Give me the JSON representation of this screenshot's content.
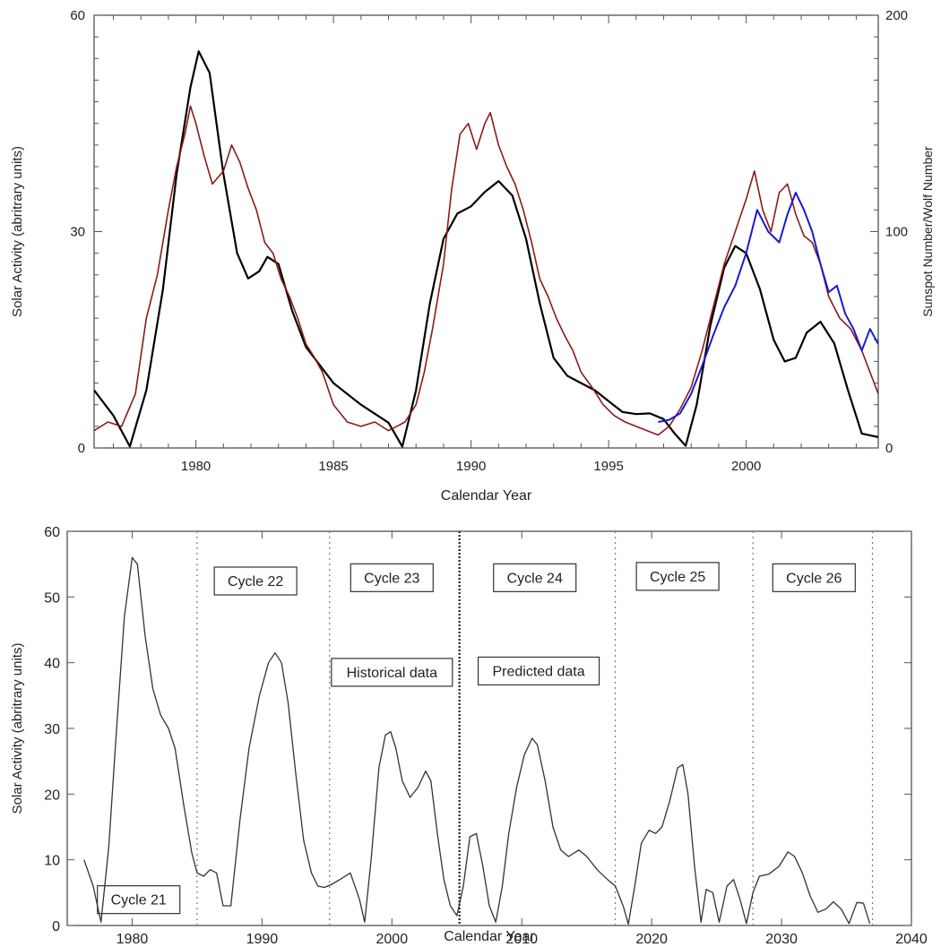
{
  "chart_data": [
    {
      "type": "line",
      "xlabel": "Calendar Year",
      "ylabel": "Solar Activity (abritrary units)",
      "y2label": "Sunspot Number/Wolf  Number",
      "xlim": [
        1976.3,
        2004.8
      ],
      "ylim": [
        0,
        60
      ],
      "y2lim": [
        0,
        200
      ],
      "xticks": [
        1980,
        1985,
        1990,
        1995,
        2000
      ],
      "yticks": [
        0,
        30,
        60
      ],
      "y2ticks": [
        0,
        100,
        200
      ],
      "grid": false,
      "legend": "none",
      "series": [
        {
          "axis": "left",
          "color": "#000000",
          "x": [
            1976.3,
            1977.0,
            1977.6,
            1978.2,
            1978.8,
            1979.3,
            1979.8,
            1980.1,
            1980.5,
            1981.0,
            1981.5,
            1981.9,
            1982.3,
            1982.6,
            1983.0,
            1983.5,
            1984.0,
            1985.0,
            1986.0,
            1987.0,
            1987.5,
            1988.0,
            1988.5,
            1989.0,
            1989.5,
            1990.0,
            1990.5,
            1991.0,
            1991.5,
            1992.0,
            1992.5,
            1993.0,
            1993.5,
            1994.0,
            1994.5,
            1995.0,
            1995.5,
            1996.0,
            1996.5,
            1997.0,
            1997.4,
            1997.8,
            1998.2,
            1998.7,
            1999.2,
            1999.6,
            2000.0,
            2000.5,
            2001.0,
            2001.4,
            2001.8,
            2002.2,
            2002.7,
            2003.2,
            2003.7,
            2004.2,
            2004.8
          ],
          "y": [
            8.0,
            4.5,
            0.2,
            8.0,
            22.0,
            38.0,
            50.0,
            55.0,
            52.0,
            38.0,
            27.0,
            23.5,
            24.5,
            26.5,
            25.5,
            19.0,
            14.0,
            9.0,
            6.0,
            3.5,
            0.2,
            8.0,
            20.0,
            29.0,
            32.5,
            33.5,
            35.5,
            37.0,
            35.0,
            29.0,
            20.0,
            12.5,
            10.0,
            9.0,
            8.0,
            6.5,
            5.0,
            4.7,
            4.8,
            4.0,
            2.0,
            0.3,
            6.0,
            17.0,
            25.0,
            28.0,
            27.0,
            22.0,
            15.0,
            12.0,
            12.5,
            16.0,
            17.5,
            14.5,
            8.0,
            2.0,
            1.5
          ]
        },
        {
          "axis": "right",
          "color": "#8b1a1a",
          "x": [
            1976.3,
            1976.8,
            1977.3,
            1977.8,
            1978.2,
            1978.6,
            1979.0,
            1979.3,
            1979.6,
            1979.8,
            1980.0,
            1980.3,
            1980.6,
            1981.0,
            1981.3,
            1981.6,
            1981.9,
            1982.2,
            1982.5,
            1982.8,
            1983.1,
            1983.4,
            1983.7,
            1984.0,
            1984.3,
            1984.6,
            1985.0,
            1985.5,
            1986.0,
            1986.5,
            1987.0,
            1987.3,
            1987.6,
            1988.0,
            1988.3,
            1988.6,
            1989.0,
            1989.3,
            1989.6,
            1989.9,
            1990.2,
            1990.5,
            1990.7,
            1991.0,
            1991.3,
            1991.6,
            1991.9,
            1992.2,
            1992.5,
            1992.8,
            1993.1,
            1993.4,
            1993.7,
            1994.0,
            1994.4,
            1994.8,
            1995.2,
            1995.6,
            1996.0,
            1996.4,
            1996.8,
            1997.2,
            1997.6,
            1998.0,
            1998.4,
            1998.8,
            1999.2,
            1999.6,
            2000.0,
            2000.3,
            2000.6,
            2000.9,
            2001.2,
            2001.5,
            2001.8,
            2002.1,
            2002.4,
            2002.7,
            2003.0,
            2003.4,
            2003.8,
            2004.2,
            2004.8
          ],
          "y": [
            8,
            12,
            10,
            25,
            60,
            80,
            110,
            130,
            145,
            158,
            150,
            135,
            122,
            128,
            140,
            132,
            120,
            110,
            95,
            90,
            78,
            70,
            60,
            48,
            42,
            35,
            20,
            12,
            10,
            12,
            8,
            10,
            12,
            20,
            35,
            55,
            85,
            120,
            145,
            150,
            138,
            150,
            155,
            140,
            130,
            122,
            110,
            95,
            78,
            70,
            60,
            52,
            45,
            35,
            28,
            20,
            15,
            12,
            10,
            8,
            6,
            10,
            18,
            28,
            45,
            65,
            85,
            100,
            115,
            128,
            110,
            100,
            118,
            122,
            108,
            98,
            95,
            85,
            70,
            60,
            55,
            45,
            25
          ]
        },
        {
          "axis": "right",
          "color": "#1a1acc",
          "x": [
            1996.8,
            1997.2,
            1997.6,
            1998.0,
            1998.4,
            1998.8,
            1999.2,
            1999.6,
            2000.0,
            2000.4,
            2000.8,
            2001.2,
            2001.5,
            2001.8,
            2002.1,
            2002.4,
            2002.7,
            2003.0,
            2003.3,
            2003.6,
            2003.9,
            2004.2,
            2004.5,
            2004.8
          ],
          "y": [
            12,
            13,
            16,
            25,
            38,
            52,
            65,
            75,
            90,
            110,
            100,
            95,
            108,
            118,
            110,
            100,
            85,
            72,
            75,
            62,
            55,
            45,
            55,
            48
          ]
        }
      ]
    },
    {
      "type": "line",
      "xlabel": "Calendar Year",
      "ylabel": "Solar Activity (abritrary units)",
      "xlim": [
        1975,
        2040
      ],
      "ylim": [
        0,
        60
      ],
      "xticks": [
        1980,
        1990,
        2000,
        2010,
        2020,
        2030,
        2040
      ],
      "yticks": [
        0,
        10,
        20,
        30,
        40,
        50,
        60
      ],
      "grid": false,
      "legend": "none",
      "dividers": [
        1985,
        1995.2,
        2005.2,
        2017.2,
        2027.8,
        2037
      ],
      "dividers_heavy": [
        2005.2
      ],
      "annotations": [
        "Cycle 21",
        "Cycle 22",
        "Cycle 23",
        "Cycle 24",
        "Cycle 25",
        "Cycle 26",
        "Historical data",
        "Predicted data"
      ],
      "series": [
        {
          "color": "#333333",
          "x": [
            1976.3,
            1977.0,
            1977.6,
            1978.2,
            1978.8,
            1979.4,
            1980.0,
            1980.4,
            1981.0,
            1981.6,
            1982.2,
            1982.8,
            1983.3,
            1984.0,
            1984.6,
            1985.0,
            1985.5,
            1986.0,
            1986.5,
            1987.0,
            1987.6,
            1988.3,
            1989.0,
            1989.8,
            1990.5,
            1991.0,
            1991.5,
            1992.0,
            1992.6,
            1993.2,
            1993.8,
            1994.3,
            1994.8,
            1995.3,
            1996.0,
            1996.8,
            1997.5,
            1997.9,
            1998.4,
            1999.0,
            1999.5,
            1999.9,
            2000.3,
            2000.8,
            2001.4,
            2002.0,
            2002.6,
            2003.0,
            2003.5,
            2004.0,
            2004.5,
            2005.0,
            2005.5,
            2006.0,
            2006.5,
            2007.0,
            2007.5,
            2008.0,
            2008.5,
            2009.0,
            2009.6,
            2010.2,
            2010.8,
            2011.2,
            2011.8,
            2012.4,
            2013.0,
            2013.6,
            2014.4,
            2015.0,
            2015.8,
            2016.6,
            2017.2,
            2017.8,
            2018.2,
            2018.7,
            2019.2,
            2019.8,
            2020.3,
            2020.8,
            2021.4,
            2022.0,
            2022.4,
            2022.8,
            2023.3,
            2023.8,
            2024.2,
            2024.7,
            2025.2,
            2025.8,
            2026.3,
            2026.8,
            2027.3,
            2027.8,
            2028.3,
            2029.0,
            2029.8,
            2030.5,
            2031.0,
            2031.6,
            2032.2,
            2032.8,
            2033.4,
            2034.0,
            2034.6,
            2035.2,
            2035.8,
            2036.3,
            2036.8
          ],
          "y": [
            10.0,
            6.0,
            0.5,
            12.0,
            30.0,
            47.0,
            56.0,
            55.0,
            44.0,
            36.0,
            32.0,
            30.0,
            27.0,
            18.0,
            11.0,
            8.0,
            7.5,
            8.5,
            8.0,
            3.0,
            3.0,
            16.0,
            27.0,
            35.0,
            40.0,
            41.5,
            40.0,
            34.0,
            23.0,
            13.0,
            8.0,
            6.0,
            5.8,
            6.2,
            7.0,
            8.0,
            4.0,
            0.5,
            10.0,
            24.0,
            29.0,
            29.5,
            27.0,
            22.0,
            19.5,
            21.0,
            23.5,
            22.0,
            14.0,
            7.0,
            3.0,
            1.5,
            6.0,
            13.5,
            14.0,
            9.0,
            3.0,
            0.5,
            6.0,
            14.0,
            21.0,
            26.0,
            28.5,
            27.5,
            22.0,
            15.0,
            11.5,
            10.5,
            11.5,
            10.5,
            8.5,
            7.0,
            6.0,
            3.0,
            0.2,
            6.0,
            12.5,
            14.5,
            14.0,
            15.0,
            19.0,
            24.0,
            24.5,
            20.0,
            9.0,
            0.5,
            5.5,
            5.0,
            0.5,
            6.0,
            7.0,
            4.0,
            0.3,
            5.0,
            7.5,
            7.8,
            9.0,
            11.2,
            10.5,
            8.0,
            4.5,
            2.0,
            2.5,
            3.6,
            2.5,
            0.3,
            3.5,
            3.4,
            0.3
          ]
        }
      ]
    }
  ]
}
